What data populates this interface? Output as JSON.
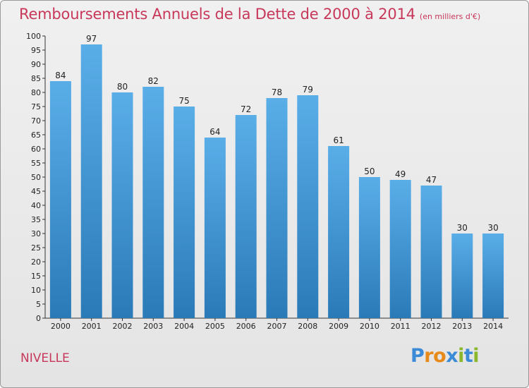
{
  "chart_data": {
    "type": "bar",
    "title": "Remboursements Annuels de la Dette de 2000 à 2014",
    "subtitle": "(en milliers d'€)",
    "categories": [
      "2000",
      "2001",
      "2002",
      "2003",
      "2004",
      "2005",
      "2006",
      "2007",
      "2008",
      "2009",
      "2010",
      "2011",
      "2012",
      "2013",
      "2014"
    ],
    "values": [
      84,
      97,
      80,
      82,
      75,
      64,
      72,
      78,
      79,
      61,
      50,
      49,
      47,
      30,
      30
    ],
    "ylim": [
      0,
      100
    ],
    "ytick_step": 5,
    "grid": false,
    "bar_color_top": "#5aaee8",
    "bar_color_bottom": "#2a7ab8"
  },
  "commune": "NIVELLE",
  "logo": {
    "text": "Proxiti",
    "letter_colors": [
      "#3a8ad8",
      "#e88a1a",
      "#e88a1a",
      "#3a8ad8",
      "#8ab82a",
      "#3a8ad8",
      "#8ab82a"
    ]
  },
  "colors": {
    "title": "#c8385a",
    "axis": "#333333",
    "label": "#222222"
  }
}
